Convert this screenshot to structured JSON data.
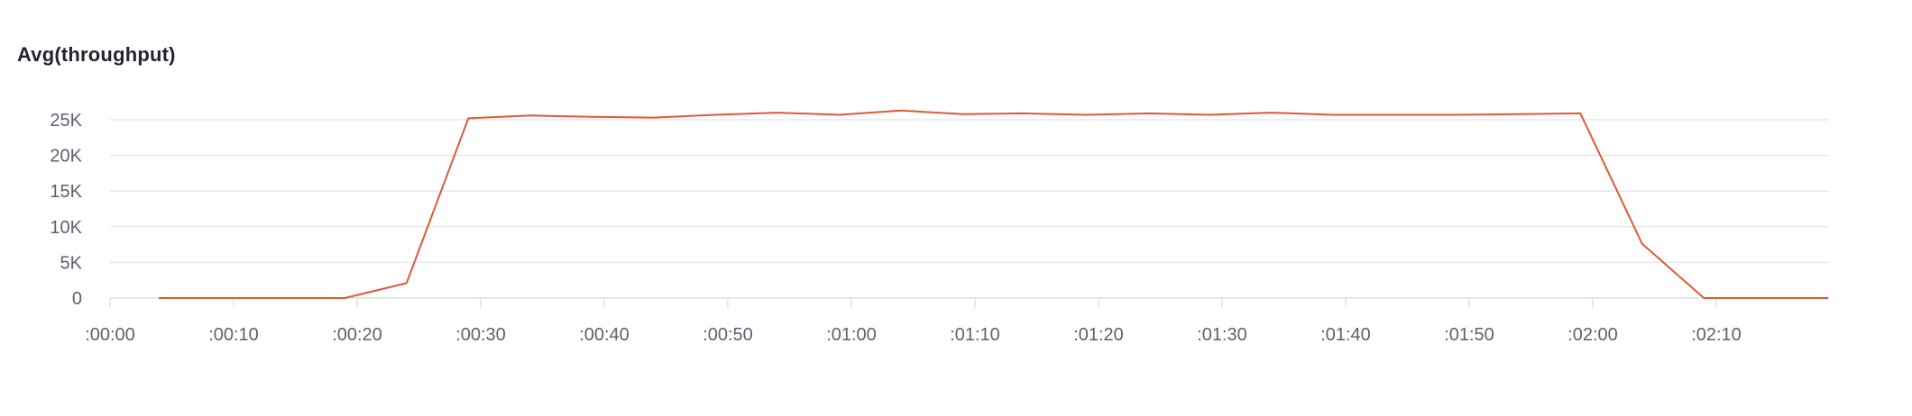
{
  "panel": {
    "title": "Avg(throughput)"
  },
  "chart_data": {
    "type": "line",
    "title": "Avg(throughput)",
    "xlabel": "",
    "ylabel": "",
    "xlim": [
      0,
      140
    ],
    "ylim": [
      0,
      25000
    ],
    "grid": true,
    "legend": "none",
    "y_ticks": [
      {
        "value": 0,
        "label": "0"
      },
      {
        "value": 5000,
        "label": "5K"
      },
      {
        "value": 10000,
        "label": "10K"
      },
      {
        "value": 15000,
        "label": "15K"
      },
      {
        "value": 20000,
        "label": "20K"
      },
      {
        "value": 25000,
        "label": "25K"
      }
    ],
    "x_ticks": [
      {
        "value": 0,
        "label": ":00:00"
      },
      {
        "value": 10,
        "label": ":00:10"
      },
      {
        "value": 20,
        "label": ":00:20"
      },
      {
        "value": 30,
        "label": ":00:30"
      },
      {
        "value": 40,
        "label": ":00:40"
      },
      {
        "value": 50,
        "label": ":00:50"
      },
      {
        "value": 60,
        "label": ":01:00"
      },
      {
        "value": 70,
        "label": ":01:10"
      },
      {
        "value": 80,
        "label": ":01:20"
      },
      {
        "value": 90,
        "label": ":01:30"
      },
      {
        "value": 100,
        "label": ":01:40"
      },
      {
        "value": 110,
        "label": ":01:50"
      },
      {
        "value": 120,
        "label": ":02:00"
      },
      {
        "value": 130,
        "label": ":02:10"
      }
    ],
    "series": [
      {
        "name": "Avg(throughput)",
        "color": "#e0583a",
        "x": [
          4,
          9,
          14,
          19,
          24,
          29,
          34,
          39,
          44,
          49,
          54,
          59,
          64,
          69,
          74,
          79,
          84,
          89,
          94,
          99,
          104,
          109,
          114,
          119,
          124,
          129,
          134,
          139
        ],
        "values": [
          0,
          0,
          0,
          0,
          2100,
          25200,
          25600,
          25400,
          25300,
          25700,
          26000,
          25700,
          26300,
          25800,
          25900,
          25700,
          25900,
          25700,
          26000,
          25700,
          25700,
          25700,
          25800,
          25900,
          7600,
          0,
          0,
          0
        ]
      }
    ]
  }
}
